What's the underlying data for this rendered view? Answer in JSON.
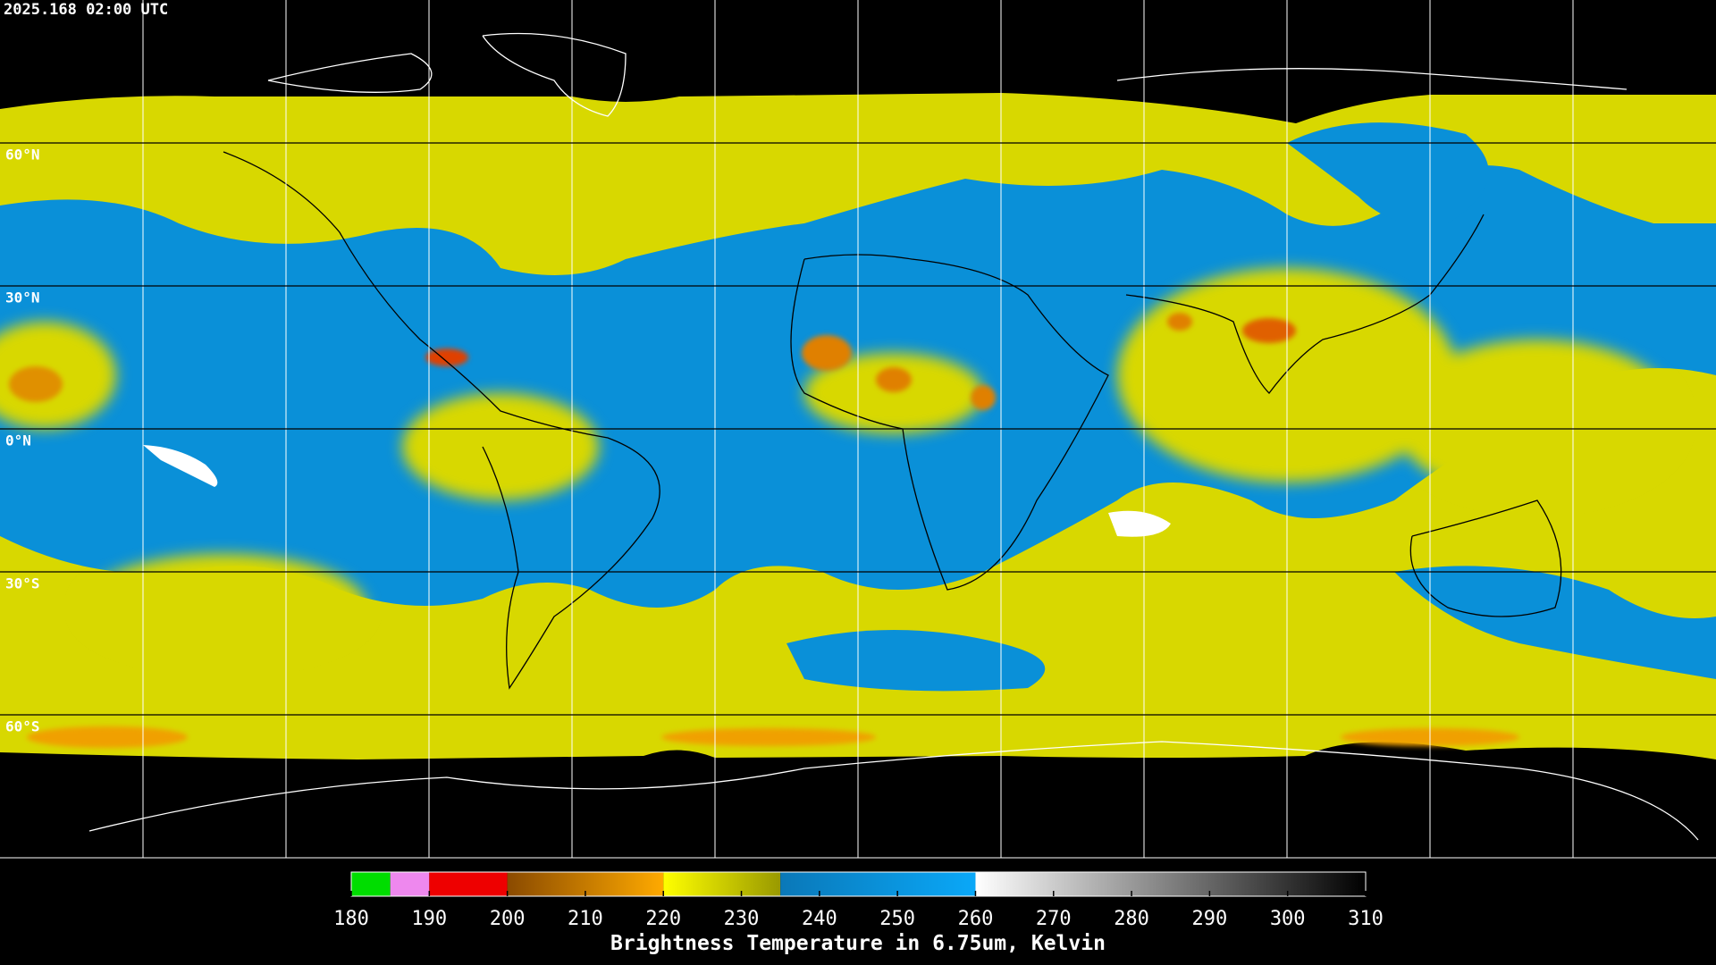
{
  "timestamp": "2025.168 02:00 UTC",
  "latitude_labels": [
    {
      "value": 60,
      "label": "60°N"
    },
    {
      "value": 30,
      "label": "30°N"
    },
    {
      "value": 0,
      "label": "0°N"
    },
    {
      "value": -30,
      "label": "30°S"
    },
    {
      "value": -60,
      "label": "60°S"
    }
  ],
  "colorbar": {
    "title": "Brightness Temperature in 6.75um, Kelvin",
    "range": [
      180,
      310
    ],
    "ticks": [
      180,
      190,
      200,
      210,
      220,
      230,
      240,
      250,
      260,
      270,
      280,
      290,
      300,
      310
    ],
    "segments": [
      {
        "range": [
          180,
          185
        ],
        "colors": [
          "#00dd00",
          "#00dd00"
        ]
      },
      {
        "range": [
          185,
          190
        ],
        "colors": [
          "#ee88ee",
          "#ee88ee"
        ]
      },
      {
        "range": [
          190,
          200
        ],
        "colors": [
          "#ee0000",
          "#ee0000"
        ]
      },
      {
        "range": [
          200,
          220
        ],
        "colors": [
          "#8a4a00",
          "#ffaa00"
        ]
      },
      {
        "range": [
          220,
          235
        ],
        "colors": [
          "#ffff00",
          "#999900"
        ]
      },
      {
        "range": [
          235,
          260
        ],
        "colors": [
          "#0a78b8",
          "#0aa8f8"
        ]
      },
      {
        "range": [
          260,
          310
        ],
        "colors": [
          "#ffffff",
          "#000000"
        ]
      }
    ]
  }
}
